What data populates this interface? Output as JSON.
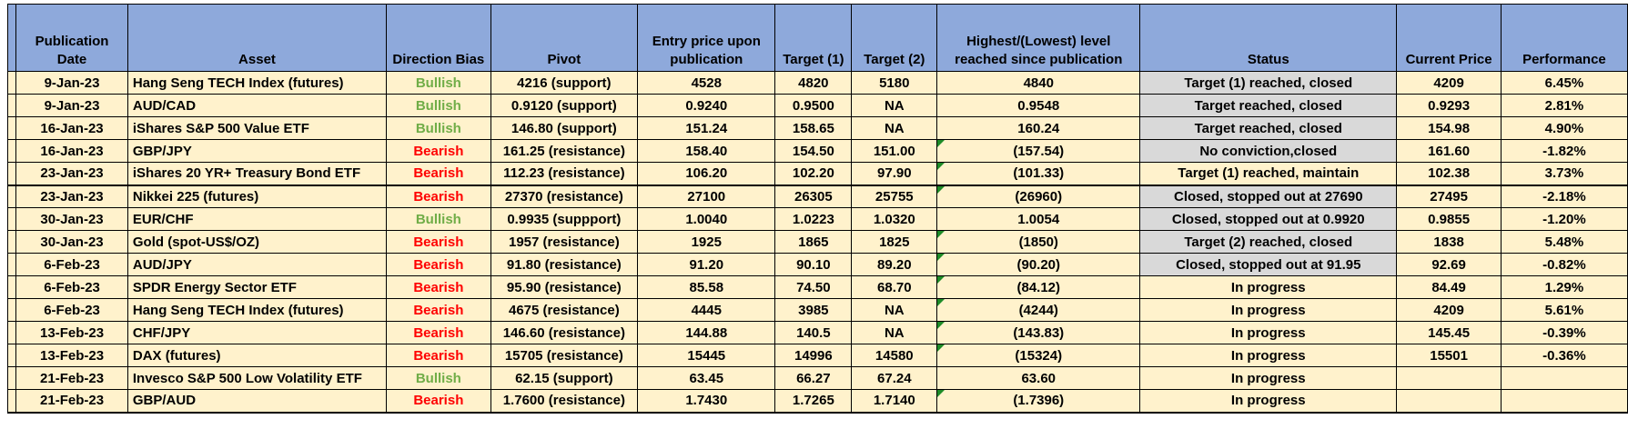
{
  "colors": {
    "header_bg": "#8EA9DB",
    "row_bg": "#FFF2CC",
    "status_closed_bg": "#D9D9D9",
    "bullish_text": "#70AD47",
    "bearish_text": "#FF0000",
    "negative_flag_triangle": "#1E8C28",
    "grid_border": "#000000"
  },
  "table": {
    "columns": [
      {
        "key": "date",
        "label": "Publication Date"
      },
      {
        "key": "asset",
        "label": "Asset"
      },
      {
        "key": "bias",
        "label": "Direction Bias"
      },
      {
        "key": "pivot",
        "label": "Pivot"
      },
      {
        "key": "entry",
        "label": "Entry price upon publication"
      },
      {
        "key": "target1",
        "label": "Target (1)"
      },
      {
        "key": "target2",
        "label": "Target (2)"
      },
      {
        "key": "highest",
        "label": "Highest/(Lowest) level reached since publication"
      },
      {
        "key": "status",
        "label": "Status"
      },
      {
        "key": "current",
        "label": "Current Price"
      },
      {
        "key": "performance",
        "label": "Performance"
      }
    ],
    "rows": [
      {
        "date": "9-Jan-23",
        "asset": "Hang Seng TECH Index (futures)",
        "bias": "Bullish",
        "pivot": "4216 (support)",
        "entry": "4528",
        "target1": "4820",
        "target2": "5180",
        "highest": "4840",
        "highest_flag": false,
        "status": "Target (1) reached, closed",
        "status_gray": true,
        "current": "4209",
        "performance": "6.45%",
        "section_break": false
      },
      {
        "date": "9-Jan-23",
        "asset": "AUD/CAD",
        "bias": "Bullish",
        "pivot": "0.9120 (support)",
        "entry": "0.9240",
        "target1": "0.9500",
        "target2": "NA",
        "highest": "0.9548",
        "highest_flag": false,
        "status": "Target reached, closed",
        "status_gray": true,
        "current": "0.9293",
        "performance": "2.81%",
        "section_break": false
      },
      {
        "date": "16-Jan-23",
        "asset": "iShares S&P 500 Value ETF",
        "bias": "Bullish",
        "pivot": "146.80 (support)",
        "entry": "151.24",
        "target1": "158.65",
        "target2": "NA",
        "highest": "160.24",
        "highest_flag": false,
        "status": "Target reached, closed",
        "status_gray": true,
        "current": "154.98",
        "performance": "4.90%",
        "section_break": false
      },
      {
        "date": "16-Jan-23",
        "asset": "GBP/JPY",
        "bias": "Bearish",
        "pivot": "161.25 (resistance)",
        "entry": "158.40",
        "target1": "154.50",
        "target2": "151.00",
        "highest": "(157.54)",
        "highest_flag": true,
        "status": "No conviction,closed",
        "status_gray": true,
        "current": "161.60",
        "performance": "-1.82%",
        "section_break": false
      },
      {
        "date": "23-Jan-23",
        "asset": "iShares 20 YR+ Treasury Bond ETF",
        "bias": "Bearish",
        "pivot": "112.23 (resistance)",
        "entry": "106.20",
        "target1": "102.20",
        "target2": "97.90",
        "highest": "(101.33)",
        "highest_flag": true,
        "status": "Target (1) reached, maintain",
        "status_gray": false,
        "current": "102.38",
        "performance": "3.73%",
        "section_break": true
      },
      {
        "date": "23-Jan-23",
        "asset": "Nikkei 225 (futures)",
        "bias": "Bearish",
        "pivot": "27370 (resistance)",
        "entry": "27100",
        "target1": "26305",
        "target2": "25755",
        "highest": "(26960)",
        "highest_flag": true,
        "status": "Closed, stopped out at 27690",
        "status_gray": true,
        "current": "27495",
        "performance": "-2.18%",
        "section_break": false
      },
      {
        "date": "30-Jan-23",
        "asset": "EUR/CHF",
        "bias": "Bullish",
        "pivot": "0.9935 (suppport)",
        "entry": "1.0040",
        "target1": "1.0223",
        "target2": "1.0320",
        "highest": "1.0054",
        "highest_flag": false,
        "status": "Closed, stopped out at 0.9920",
        "status_gray": true,
        "current": "0.9855",
        "performance": "-1.20%",
        "section_break": false
      },
      {
        "date": "30-Jan-23",
        "asset": "Gold (spot-US$/OZ)",
        "bias": "Bearish",
        "pivot": "1957 (resistance)",
        "entry": "1925",
        "target1": "1865",
        "target2": "1825",
        "highest": "(1850)",
        "highest_flag": true,
        "status": "Target (2) reached, closed",
        "status_gray": true,
        "current": "1838",
        "performance": "5.48%",
        "section_break": false
      },
      {
        "date": "6-Feb-23",
        "asset": "AUD/JPY",
        "bias": "Bearish",
        "pivot": "91.80 (resistance)",
        "entry": "91.20",
        "target1": "90.10",
        "target2": "89.20",
        "highest": "(90.20)",
        "highest_flag": true,
        "status": "Closed, stopped out at 91.95",
        "status_gray": true,
        "current": "92.69",
        "performance": "-0.82%",
        "section_break": false
      },
      {
        "date": "6-Feb-23",
        "asset": "SPDR Energy Sector ETF",
        "bias": "Bearish",
        "pivot": "95.90 (resistance)",
        "entry": "85.58",
        "target1": "74.50",
        "target2": "68.70",
        "highest": "(84.12)",
        "highest_flag": true,
        "status": "In progress",
        "status_gray": false,
        "current": "84.49",
        "performance": "1.29%",
        "section_break": false
      },
      {
        "date": "6-Feb-23",
        "asset": "Hang Seng TECH Index (futures)",
        "bias": "Bearish",
        "pivot": "4675 (resistance)",
        "entry": "4445",
        "target1": "3985",
        "target2": "NA",
        "highest": "(4244)",
        "highest_flag": true,
        "status": "In progress",
        "status_gray": false,
        "current": "4209",
        "performance": "5.61%",
        "section_break": false
      },
      {
        "date": "13-Feb-23",
        "asset": "CHF/JPY",
        "bias": "Bearish",
        "pivot": "146.60 (resistance)",
        "entry": "144.88",
        "target1": "140.5",
        "target2": "NA",
        "highest": "(143.83)",
        "highest_flag": true,
        "status": "In progress",
        "status_gray": false,
        "current": "145.45",
        "performance": "-0.39%",
        "section_break": false
      },
      {
        "date": "13-Feb-23",
        "asset": "DAX (futures)",
        "bias": "Bearish",
        "pivot": "15705 (resistance)",
        "entry": "15445",
        "target1": "14996",
        "target2": "14580",
        "highest": "(15324)",
        "highest_flag": true,
        "status": "In progress",
        "status_gray": false,
        "current": "15501",
        "performance": "-0.36%",
        "section_break": false
      },
      {
        "date": "21-Feb-23",
        "asset": "Invesco S&P 500 Low Volatility ETF",
        "bias": "Bullish",
        "pivot": "62.15 (support)",
        "entry": "63.45",
        "target1": "66.27",
        "target2": "67.24",
        "highest": "63.60",
        "highest_flag": false,
        "status": "In progress",
        "status_gray": false,
        "current": "",
        "performance": "",
        "section_break": false
      },
      {
        "date": "21-Feb-23",
        "asset": "GBP/AUD",
        "bias": "Bearish",
        "pivot": "1.7600 (resistance)",
        "entry": "1.7430",
        "target1": "1.7265",
        "target2": "1.7140",
        "highest": "(1.7396)",
        "highest_flag": true,
        "status": "In progress",
        "status_gray": false,
        "current": "",
        "performance": "",
        "section_break": false
      }
    ]
  }
}
